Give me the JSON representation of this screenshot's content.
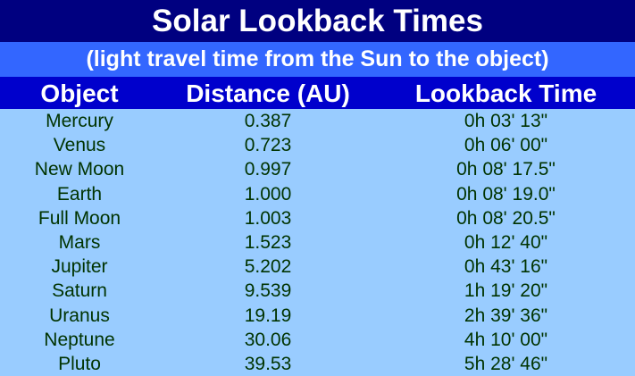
{
  "title": "Solar Lookback Times",
  "subtitle": "(light travel time from the Sun to the object)",
  "headers": {
    "object": "Object",
    "distance": "Distance (AU)",
    "lookback": "Lookback Time"
  },
  "rows": [
    {
      "object": "Mercury",
      "distance": "0.387",
      "lookback": "0h 03' 13\""
    },
    {
      "object": "Venus",
      "distance": "0.723",
      "lookback": "0h 06' 00\""
    },
    {
      "object": "New Moon",
      "distance": "0.997",
      "lookback": "0h 08' 17.5\""
    },
    {
      "object": "Earth",
      "distance": "1.000",
      "lookback": "0h 08' 19.0\""
    },
    {
      "object": "Full Moon",
      "distance": "1.003",
      "lookback": "0h 08' 20.5\""
    },
    {
      "object": "Mars",
      "distance": "1.523",
      "lookback": "0h 12' 40\""
    },
    {
      "object": "Jupiter",
      "distance": "5.202",
      "lookback": "0h 43' 16\""
    },
    {
      "object": "Saturn",
      "distance": "9.539",
      "lookback": "1h 19' 20\""
    },
    {
      "object": "Uranus",
      "distance": "19.19",
      "lookback": "2h 39' 36\""
    },
    {
      "object": "Neptune",
      "distance": "30.06",
      "lookback": "4h 10' 00\""
    },
    {
      "object": "Pluto",
      "distance": "39.53",
      "lookback": "5h 28' 46\""
    }
  ],
  "colors": {
    "title_bg": "#000080",
    "subtitle_bg": "#3366ff",
    "header_bg": "#0000cc",
    "table_bg": "#99ccff",
    "row_text": "#003300"
  }
}
